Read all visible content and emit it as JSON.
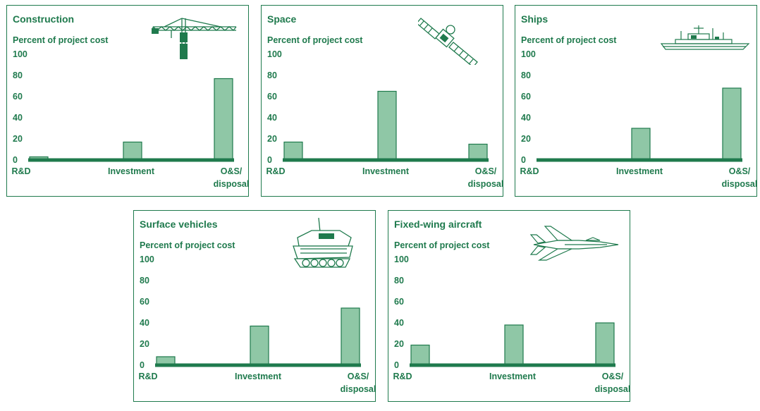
{
  "icons": [
    "crane-icon",
    "satellite-icon",
    "ship-icon",
    "tank-icon",
    "fighter-jet-icon"
  ],
  "colors": {
    "accent": "#1f7a4d",
    "bar_fill": "#8fc7a6"
  },
  "chart_data": [
    {
      "type": "bar",
      "title": "Construction",
      "ylabel": "Percent of project cost",
      "categories": [
        "R&D",
        "Investment",
        "O&S/ disposal"
      ],
      "values": [
        3,
        17,
        77
      ],
      "ylim": [
        0,
        100
      ],
      "yticks": [
        0,
        20,
        40,
        60,
        80,
        100
      ]
    },
    {
      "type": "bar",
      "title": "Space",
      "ylabel": "Percent of project cost",
      "categories": [
        "R&D",
        "Investment",
        "O&S/ disposal"
      ],
      "values": [
        17,
        65,
        15
      ],
      "ylim": [
        0,
        100
      ],
      "yticks": [
        0,
        20,
        40,
        60,
        80,
        100
      ]
    },
    {
      "type": "bar",
      "title": "Ships",
      "ylabel": "Percent of project cost",
      "categories": [
        "R&D",
        "Investment",
        "O&S/ disposal"
      ],
      "values": [
        1,
        30,
        68
      ],
      "ylim": [
        0,
        100
      ],
      "yticks": [
        0,
        20,
        40,
        60,
        80,
        100
      ]
    },
    {
      "type": "bar",
      "title": "Surface vehicles",
      "ylabel": "Percent of project cost",
      "categories": [
        "R&D",
        "Investment",
        "O&S/ disposal"
      ],
      "values": [
        8,
        37,
        54
      ],
      "ylim": [
        0,
        100
      ],
      "yticks": [
        0,
        20,
        40,
        60,
        80,
        100
      ]
    },
    {
      "type": "bar",
      "title": "Fixed-wing aircraft",
      "ylabel": "Percent of project cost",
      "categories": [
        "R&D",
        "Investment",
        "O&S/ disposal"
      ],
      "values": [
        19,
        38,
        40
      ],
      "ylim": [
        0,
        100
      ],
      "yticks": [
        0,
        20,
        40,
        60,
        80,
        100
      ]
    }
  ]
}
